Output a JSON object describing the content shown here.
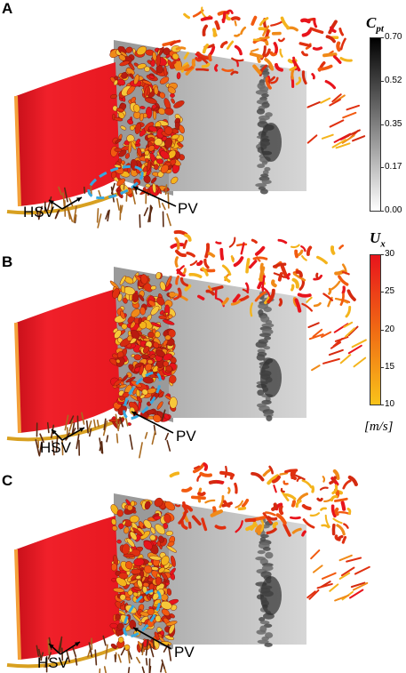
{
  "panels": [
    {
      "letter": "A",
      "label_hsv": "HSV",
      "label_pv": "PV"
    },
    {
      "letter": "B",
      "label_hsv": "HSV",
      "label_pv": "PV"
    },
    {
      "letter": "C",
      "label_hsv": "HSV",
      "label_pv": "PV"
    }
  ],
  "colorbar_cpt": {
    "symbol": "C",
    "subscript": "pt",
    "ticks": [
      "0.70",
      "0.52",
      "0.35",
      "0.17",
      "0.00"
    ],
    "colors": [
      "#000000",
      "#ffffff"
    ]
  },
  "colorbar_ux": {
    "symbol": "U",
    "subscript": "x",
    "ticks": [
      "30",
      "25",
      "20",
      "15",
      "10"
    ],
    "unit": "[m/s]",
    "colors": [
      "#e8141c",
      "#f06a14",
      "#f9c31a"
    ]
  }
}
